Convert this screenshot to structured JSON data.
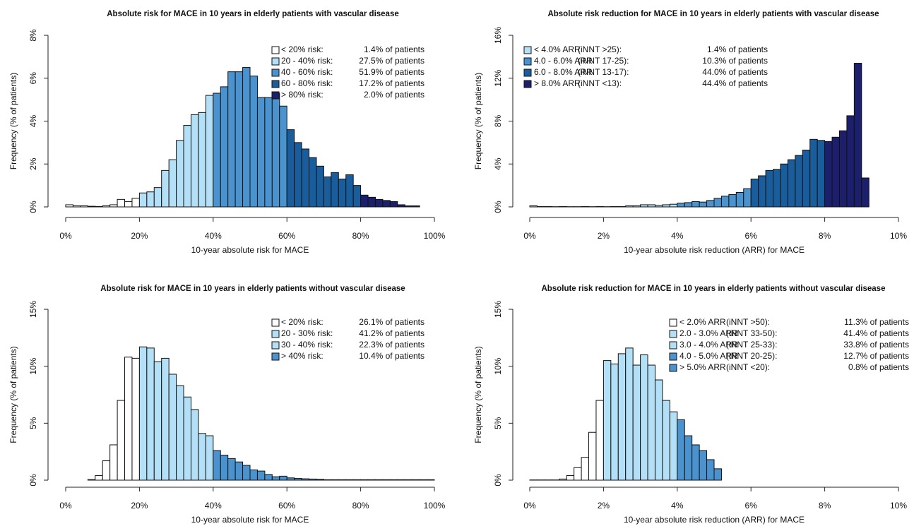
{
  "chart_data": [
    {
      "type": "histogram",
      "title": "Absolute risk for MACE in 10 years in elderly patients with vascular disease",
      "x_label": "10-year absolute risk for MACE",
      "y_label": "Frequency (% of patients)",
      "bins": [
        0,
        2,
        4,
        6,
        8,
        10,
        12,
        14,
        16,
        18,
        20,
        22,
        24,
        26,
        28,
        30,
        32,
        34,
        36,
        38,
        40,
        42,
        44,
        46,
        48,
        50,
        52,
        54,
        56,
        58,
        60,
        62,
        64,
        66,
        68,
        70,
        72,
        74,
        76,
        78,
        80,
        82,
        84,
        86,
        88,
        90,
        92,
        94,
        96
      ],
      "counts": [
        0.1,
        0.05,
        0.05,
        0.03,
        0.02,
        0.05,
        0.1,
        0.35,
        0.25,
        0.4,
        0.65,
        0.7,
        0.9,
        1.7,
        2.2,
        3.1,
        3.8,
        4.3,
        4.4,
        5.2,
        5.3,
        5.6,
        6.3,
        6.3,
        6.5,
        6.1,
        5.1,
        5.1,
        5.3,
        4.7,
        3.6,
        3.0,
        2.7,
        2.3,
        1.9,
        1.4,
        1.6,
        1.3,
        1.5,
        1.0,
        0.55,
        0.45,
        0.35,
        0.3,
        0.25,
        0.1,
        0.05,
        0.05
      ],
      "colors": [
        "#ffffff",
        "#ffffff",
        "#ffffff",
        "#ffffff",
        "#ffffff",
        "#ffffff",
        "#ffffff",
        "#ffffff",
        "#ffffff",
        "#ffffff",
        "#b3e0f6",
        "#b3e0f6",
        "#b3e0f6",
        "#b3e0f6",
        "#b3e0f6",
        "#b3e0f6",
        "#b3e0f6",
        "#b3e0f6",
        "#b3e0f6",
        "#b3e0f6",
        "#4b93cf",
        "#4b93cf",
        "#4b93cf",
        "#4b93cf",
        "#4b93cf",
        "#4b93cf",
        "#4b93cf",
        "#4b93cf",
        "#4b93cf",
        "#4b93cf",
        "#1a5d9c",
        "#1a5d9c",
        "#1a5d9c",
        "#1a5d9c",
        "#1a5d9c",
        "#1a5d9c",
        "#1a5d9c",
        "#1a5d9c",
        "#1a5d9c",
        "#1a5d9c",
        "#1c1f6b",
        "#1c1f6b",
        "#1c1f6b",
        "#1c1f6b",
        "#1c1f6b",
        "#1c1f6b",
        "#1c1f6b",
        "#1c1f6b"
      ],
      "xlim": [
        0,
        100
      ],
      "ylim": [
        0,
        8
      ],
      "xticks": [
        {
          "value": 0,
          "label": "0%"
        },
        {
          "value": 20,
          "label": "20%"
        },
        {
          "value": 40,
          "label": "40%"
        },
        {
          "value": 60,
          "label": "60%"
        },
        {
          "value": 80,
          "label": "80%"
        },
        {
          "value": 100,
          "label": "100%"
        }
      ],
      "yticks": [
        {
          "value": 0,
          "label": "0%"
        },
        {
          "value": 2,
          "label": "2%"
        },
        {
          "value": 4,
          "label": "4%"
        },
        {
          "value": 6,
          "label": "6%"
        },
        {
          "value": 8,
          "label": "8%"
        }
      ],
      "legend": [
        {
          "color": "#ffffff",
          "columns": [
            "< 20% risk:",
            "1.4% of patients"
          ]
        },
        {
          "color": "#b3e0f6",
          "columns": [
            "20 - 40% risk:",
            "27.5% of patients"
          ]
        },
        {
          "color": "#4b93cf",
          "columns": [
            "40 - 60% risk:",
            "51.9% of patients"
          ]
        },
        {
          "color": "#1a5d9c",
          "columns": [
            "60 - 80% risk:",
            "17.2% of patients"
          ]
        },
        {
          "color": "#1c1f6b",
          "columns": [
            "> 80% risk:",
            "2.0% of patients"
          ]
        }
      ]
    },
    {
      "type": "histogram",
      "title": "Absolute risk reduction for MACE in 10 years in elderly patients with vascular disease",
      "x_label": "10-year absolute risk reduction (ARR) for MACE",
      "y_label": "Frequency (% of patients)",
      "bins": [
        0,
        0.2,
        0.4,
        0.6,
        0.8,
        1.0,
        1.2,
        1.4,
        1.6,
        1.8,
        2.0,
        2.2,
        2.4,
        2.6,
        2.8,
        3.0,
        3.2,
        3.4,
        3.6,
        3.8,
        4.0,
        4.2,
        4.4,
        4.6,
        4.8,
        5.0,
        5.2,
        5.4,
        5.6,
        5.8,
        6.0,
        6.2,
        6.4,
        6.6,
        6.8,
        7.0,
        7.2,
        7.4,
        7.6,
        7.8,
        8.0,
        8.2,
        8.4,
        8.6,
        8.8,
        9.0,
        9.2
      ],
      "counts": [
        0.1,
        0.03,
        0.03,
        0.02,
        0.03,
        0.02,
        0.02,
        0.03,
        0.02,
        0.03,
        0.02,
        0.03,
        0.03,
        0.1,
        0.1,
        0.2,
        0.2,
        0.15,
        0.2,
        0.25,
        0.35,
        0.4,
        0.5,
        0.45,
        0.6,
        0.8,
        1.0,
        1.15,
        1.35,
        1.7,
        2.6,
        2.9,
        3.4,
        3.5,
        4.0,
        4.4,
        4.8,
        5.3,
        6.3,
        6.2,
        6.1,
        6.5,
        7.1,
        8.5,
        13.4,
        2.7
      ],
      "colors": [
        "#b3e0f6",
        "#b3e0f6",
        "#b3e0f6",
        "#b3e0f6",
        "#b3e0f6",
        "#b3e0f6",
        "#b3e0f6",
        "#b3e0f6",
        "#b3e0f6",
        "#b3e0f6",
        "#b3e0f6",
        "#b3e0f6",
        "#b3e0f6",
        "#b3e0f6",
        "#b3e0f6",
        "#b3e0f6",
        "#b3e0f6",
        "#b3e0f6",
        "#b3e0f6",
        "#b3e0f6",
        "#4b93cf",
        "#4b93cf",
        "#4b93cf",
        "#4b93cf",
        "#4b93cf",
        "#4b93cf",
        "#4b93cf",
        "#4b93cf",
        "#4b93cf",
        "#4b93cf",
        "#1a5d9c",
        "#1a5d9c",
        "#1a5d9c",
        "#1a5d9c",
        "#1a5d9c",
        "#1a5d9c",
        "#1a5d9c",
        "#1a5d9c",
        "#1a5d9c",
        "#1a5d9c",
        "#1c1f6b",
        "#1c1f6b",
        "#1c1f6b",
        "#1c1f6b",
        "#1c1f6b",
        "#1c1f6b"
      ],
      "xlim": [
        0,
        10
      ],
      "ylim": [
        0,
        16
      ],
      "xticks": [
        {
          "value": 0,
          "label": "0%"
        },
        {
          "value": 2,
          "label": "2%"
        },
        {
          "value": 4,
          "label": "4%"
        },
        {
          "value": 6,
          "label": "6%"
        },
        {
          "value": 8,
          "label": "8%"
        },
        {
          "value": 10,
          "label": "10%"
        }
      ],
      "yticks": [
        {
          "value": 0,
          "label": "0%"
        },
        {
          "value": 4,
          "label": "4%"
        },
        {
          "value": 8,
          "label": "8%"
        },
        {
          "value": 12,
          "label": "12%"
        },
        {
          "value": 16,
          "label": "16%"
        }
      ],
      "legend": [
        {
          "color": "#b3e0f6",
          "columns": [
            "< 4.0% ARR",
            "(iNNT >25):",
            "1.4% of patients"
          ]
        },
        {
          "color": "#4b93cf",
          "columns": [
            "4.0 - 6.0% ARR",
            "(iNNT 17-25):",
            "10.3% of patients"
          ]
        },
        {
          "color": "#1a5d9c",
          "columns": [
            "6.0 - 8.0% ARR",
            "(iNNT 13-17):",
            "44.0% of patients"
          ]
        },
        {
          "color": "#1c1f6b",
          "columns": [
            "> 8.0% ARR",
            "(iNNT <13):",
            "44.4% of patients"
          ]
        }
      ]
    },
    {
      "type": "histogram",
      "title": "Absolute risk for MACE in 10 years in elderly patients without vascular disease",
      "x_label": "10-year absolute risk for MACE",
      "y_label": "Frequency (% of patients)",
      "bins": [
        6,
        8,
        10,
        12,
        14,
        16,
        18,
        20,
        22,
        24,
        26,
        28,
        30,
        32,
        34,
        36,
        38,
        40,
        42,
        44,
        46,
        48,
        50,
        52,
        54,
        56,
        58,
        60,
        62,
        64,
        66,
        68,
        70,
        72,
        74,
        76,
        78,
        80,
        82,
        84,
        86,
        88,
        90,
        92,
        94,
        96,
        98,
        100
      ],
      "counts": [
        0.05,
        0.4,
        1.7,
        3.1,
        7.0,
        10.8,
        10.7,
        11.7,
        11.6,
        10.4,
        10.7,
        9.3,
        8.3,
        7.3,
        6.2,
        4.1,
        3.9,
        2.6,
        2.2,
        1.9,
        1.6,
        1.3,
        0.9,
        0.8,
        0.5,
        0.3,
        0.35,
        0.2,
        0.15,
        0.12,
        0.1,
        0.08,
        0.04,
        0.04,
        0.04,
        0.04,
        0.04,
        0.04,
        0.04,
        0.04,
        0.04,
        0.04,
        0.04,
        0.04,
        0.04,
        0.04,
        0.04
      ],
      "colors": [
        "#ffffff",
        "#ffffff",
        "#ffffff",
        "#ffffff",
        "#ffffff",
        "#ffffff",
        "#ffffff",
        "#b3e0f6",
        "#b3e0f6",
        "#b3e0f6",
        "#b3e0f6",
        "#b3e0f6",
        "#b3e0f6",
        "#b3e0f6",
        "#b3e0f6",
        "#b3e0f6",
        "#b3e0f6",
        "#4b93cf",
        "#4b93cf",
        "#4b93cf",
        "#4b93cf",
        "#4b93cf",
        "#4b93cf",
        "#4b93cf",
        "#4b93cf",
        "#4b93cf",
        "#4b93cf",
        "#4b93cf",
        "#4b93cf",
        "#4b93cf",
        "#4b93cf",
        "#4b93cf",
        "#4b93cf",
        "#4b93cf",
        "#4b93cf",
        "#4b93cf",
        "#4b93cf",
        "#4b93cf",
        "#4b93cf",
        "#4b93cf",
        "#4b93cf",
        "#4b93cf",
        "#4b93cf",
        "#4b93cf",
        "#4b93cf",
        "#4b93cf",
        "#4b93cf"
      ],
      "xlim": [
        0,
        100
      ],
      "ylim": [
        0,
        15
      ],
      "xticks": [
        {
          "value": 0,
          "label": "0%"
        },
        {
          "value": 20,
          "label": "20%"
        },
        {
          "value": 40,
          "label": "40%"
        },
        {
          "value": 60,
          "label": "60%"
        },
        {
          "value": 80,
          "label": "80%"
        },
        {
          "value": 100,
          "label": "100%"
        }
      ],
      "yticks": [
        {
          "value": 0,
          "label": "0%"
        },
        {
          "value": 5,
          "label": "5%"
        },
        {
          "value": 10,
          "label": "10%"
        },
        {
          "value": 15,
          "label": "15%"
        }
      ],
      "legend": [
        {
          "color": "#ffffff",
          "columns": [
            "< 20% risk:",
            "26.1% of patients"
          ]
        },
        {
          "color": "#b3e0f6",
          "columns": [
            "20 - 30% risk:",
            "41.2% of patients"
          ]
        },
        {
          "color": "#b3e0f6",
          "columns": [
            "30 - 40% risk:",
            "22.3% of patients"
          ]
        },
        {
          "color": "#4b93cf",
          "columns": [
            "> 40% risk:",
            "10.4% of patients"
          ]
        }
      ]
    },
    {
      "type": "histogram",
      "title": "Absolute risk reduction for MACE in 10 years in elderly patients without vascular disease",
      "x_label": "10-year absolute risk reduction (ARR) for MACE",
      "y_label": "Frequency (% of patients)",
      "bins": [
        0,
        0.2,
        0.4,
        0.6,
        0.8,
        1.0,
        1.2,
        1.4,
        1.6,
        1.8,
        2.0,
        2.2,
        2.4,
        2.6,
        2.8,
        3.0,
        3.2,
        3.4,
        3.6,
        3.8,
        4.0,
        4.2,
        4.4,
        4.6,
        4.8,
        5.0,
        5.2
      ],
      "counts": [
        0.02,
        0.02,
        0.02,
        0.02,
        0.1,
        0.4,
        1.1,
        2.0,
        4.2,
        7.0,
        10.5,
        10.2,
        11.1,
        11.6,
        10.1,
        11.0,
        10.1,
        8.8,
        7.0,
        6.0,
        5.3,
        3.9,
        3.1,
        2.6,
        1.8,
        1.0
      ],
      "colors": [
        "#ffffff",
        "#ffffff",
        "#ffffff",
        "#ffffff",
        "#ffffff",
        "#ffffff",
        "#ffffff",
        "#ffffff",
        "#ffffff",
        "#ffffff",
        "#b3e0f6",
        "#b3e0f6",
        "#b3e0f6",
        "#b3e0f6",
        "#b3e0f6",
        "#b3e0f6",
        "#b3e0f6",
        "#b3e0f6",
        "#b3e0f6",
        "#b3e0f6",
        "#4b93cf",
        "#4b93cf",
        "#4b93cf",
        "#4b93cf",
        "#4b93cf",
        "#4b93cf"
      ],
      "xlim": [
        0,
        10
      ],
      "ylim": [
        0,
        15
      ],
      "xticks": [
        {
          "value": 0,
          "label": "0%"
        },
        {
          "value": 2,
          "label": "2%"
        },
        {
          "value": 4,
          "label": "4%"
        },
        {
          "value": 6,
          "label": "6%"
        },
        {
          "value": 8,
          "label": "8%"
        },
        {
          "value": 10,
          "label": "10%"
        }
      ],
      "yticks": [
        {
          "value": 0,
          "label": "0%"
        },
        {
          "value": 5,
          "label": "5%"
        },
        {
          "value": 10,
          "label": "10%"
        },
        {
          "value": 15,
          "label": "15%"
        }
      ],
      "legend": [
        {
          "color": "#ffffff",
          "columns": [
            "< 2.0% ARR",
            "(iNNT >50):",
            "11.3% of patients"
          ]
        },
        {
          "color": "#b3e0f6",
          "columns": [
            "2.0 - 3.0% ARR",
            "(iNNT 33-50):",
            "41.4% of patients"
          ]
        },
        {
          "color": "#b3e0f6",
          "columns": [
            "3.0 - 4.0% ARR",
            "(iNNT 25-33):",
            "33.8% of patients"
          ]
        },
        {
          "color": "#4b93cf",
          "columns": [
            "4.0 - 5.0% ARR",
            "(iNNT 20-25):",
            "12.7% of patients"
          ]
        },
        {
          "color": "#4b93cf",
          "columns": [
            "> 5.0% ARR",
            "(iNNT <20):",
            "0.8% of patients"
          ]
        }
      ]
    }
  ]
}
